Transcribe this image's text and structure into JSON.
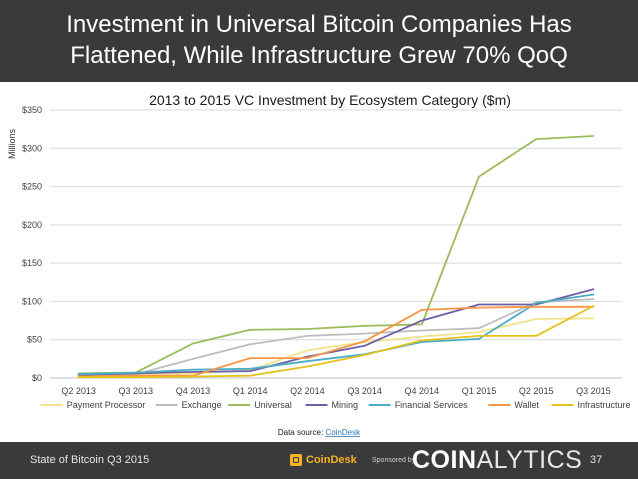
{
  "slide": {
    "headline_line1": "Investment in Universal Bitcoin Companies Has",
    "headline_line2": "Flattened, While Infrastructure Grew 70% QoQ",
    "footer_text": "State of Bitcoin Q3 2015",
    "page_number": "37",
    "coindesk_logo": "CoinDesk",
    "sponsored_label": "Sponsored by",
    "coinalytics_bold": "COIN",
    "coinalytics_thin": "ALYTICS",
    "colors": {
      "bar": "#3a3a3a",
      "coindesk": "#f5b324"
    }
  },
  "chart_data": {
    "type": "line",
    "title": "2013 to 2015 VC Investment by Ecosystem Category ($m)",
    "ylabel": "Millions",
    "xlabel": "",
    "ylim": [
      0,
      350
    ],
    "y_ticks": [
      0,
      50,
      100,
      150,
      200,
      250,
      300,
      350
    ],
    "y_tick_labels": [
      "$0",
      "$50",
      "$100",
      "$150",
      "$200",
      "$250",
      "$300",
      "$350"
    ],
    "grid": true,
    "legend_position": "bottom",
    "categories": [
      "Q2 2013",
      "Q3 2013",
      "Q4 2013",
      "Q1 2014",
      "Q2 2014",
      "Q3 2014",
      "Q4 2014",
      "Q1 2015",
      "Q2 2015",
      "Q3 2015"
    ],
    "series": [
      {
        "name": "Payment Processor",
        "color": "#f2e38a",
        "values": [
          3,
          5,
          6,
          10,
          36,
          47,
          54,
          60,
          77,
          78
        ]
      },
      {
        "name": "Exchange",
        "color": "#bdbdbd",
        "values": [
          4,
          5,
          25,
          44,
          55,
          58,
          62,
          65,
          99,
          103
        ]
      },
      {
        "name": "Universal",
        "color": "#9bbb59",
        "values": [
          6,
          7,
          45,
          63,
          64,
          68,
          70,
          263,
          312,
          316
        ]
      },
      {
        "name": "Mining",
        "color": "#6b5fa6",
        "values": [
          4,
          6,
          8,
          9,
          28,
          42,
          75,
          96,
          96,
          116
        ]
      },
      {
        "name": "Financial Services",
        "color": "#4bacc6",
        "values": [
          5,
          7,
          11,
          12,
          22,
          31,
          47,
          51,
          98,
          109
        ]
      },
      {
        "name": "Wallet",
        "color": "#f79646",
        "values": [
          2,
          3,
          3,
          26,
          26,
          48,
          89,
          92,
          93,
          93
        ]
      },
      {
        "name": "Infrastructure",
        "color": "#e4c21a",
        "values": [
          1,
          1,
          2,
          3,
          15,
          30,
          49,
          55,
          55,
          94
        ]
      }
    ],
    "source_label": "Data source: ",
    "source_link": "CoinDesk"
  }
}
